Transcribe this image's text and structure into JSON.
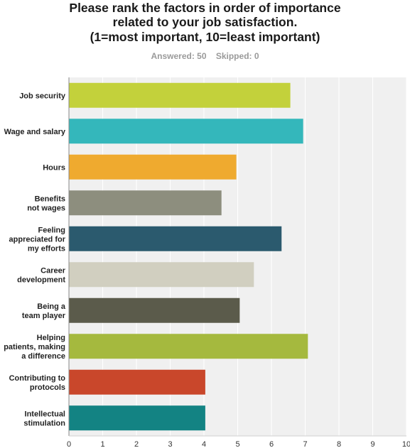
{
  "title_lines": [
    "Please rank the factors in order of importance",
    "related to your job satisfaction.",
    "(1=most important, 10=least important)"
  ],
  "summary": {
    "answered": "Answered: 50",
    "skipped": "Skipped: 0"
  },
  "chart_data": {
    "type": "bar",
    "orientation": "horizontal",
    "title": "Please rank the factors in order of importance related to your job satisfaction. (1=most important, 10=least important)",
    "categories": [
      [
        "Job security"
      ],
      [
        "Wage and salary"
      ],
      [
        "Hours"
      ],
      [
        "Benefits",
        "not wages"
      ],
      [
        "Feeling",
        "appreciated for",
        "my efforts"
      ],
      [
        "Career",
        "development"
      ],
      [
        "Being a",
        "team player"
      ],
      [
        "Helping",
        "patients, making",
        "a difference"
      ],
      [
        "Contributing to",
        "protocols"
      ],
      [
        "Intellectual",
        "stimulation"
      ]
    ],
    "values": [
      6.56,
      6.94,
      4.96,
      4.52,
      6.3,
      5.48,
      5.06,
      7.08,
      4.04,
      4.04
    ],
    "colors": [
      "#c3d13b",
      "#34b7bb",
      "#efaa2f",
      "#8d8e7e",
      "#2b5a6e",
      "#d1cfc0",
      "#5b5b4b",
      "#a5b93e",
      "#c9472b",
      "#138383"
    ],
    "xlim": [
      0,
      10
    ],
    "xticks": [
      "0",
      "1",
      "2",
      "3",
      "4",
      "5",
      "6",
      "7",
      "8",
      "9",
      "10"
    ],
    "grid": true,
    "xlabel": "",
    "ylabel": ""
  }
}
